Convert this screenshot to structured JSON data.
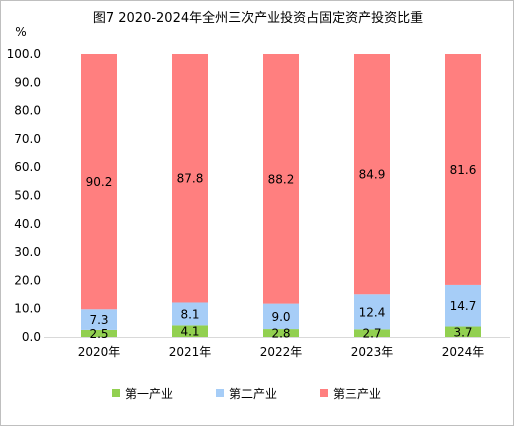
{
  "chart_data": {
    "type": "bar",
    "stacked": true,
    "title": "图7 2020-2024年全州三次产业投资占固定资产投资比重",
    "ylabel": "%",
    "ylim": [
      0,
      100
    ],
    "yticks": [
      "0.0",
      "10.0",
      "20.0",
      "30.0",
      "40.0",
      "50.0",
      "60.0",
      "70.0",
      "80.0",
      "90.0",
      "100.0"
    ],
    "categories": [
      "2020年",
      "2021年",
      "2022年",
      "2023年",
      "2024年"
    ],
    "series": [
      {
        "name": "第一产业",
        "color": "#92d050",
        "values": [
          2.5,
          4.1,
          2.8,
          2.7,
          3.7
        ]
      },
      {
        "name": "第二产业",
        "color": "#a6cdf7",
        "values": [
          7.3,
          8.1,
          9.0,
          12.4,
          14.7
        ]
      },
      {
        "name": "第三产业",
        "color": "#ff7f7f",
        "values": [
          90.2,
          87.8,
          88.2,
          84.9,
          81.6
        ]
      }
    ],
    "data_labels": [
      [
        "2.5",
        "4.1",
        "2.8",
        "2.7",
        "3.7"
      ],
      [
        "7.3",
        "8.1",
        "9.0",
        "12.4",
        "14.7"
      ],
      [
        "90.2",
        "87.8",
        "88.2",
        "84.9",
        "81.6"
      ]
    ],
    "legend_position": "bottom",
    "grid": false
  }
}
